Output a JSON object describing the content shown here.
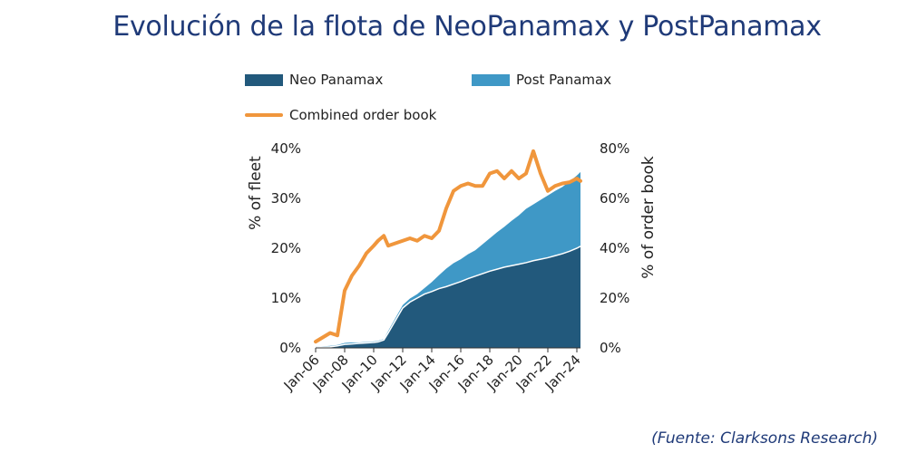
{
  "title": "Evolución de la flota de NeoPanamax y PostPanamax",
  "source": "(Fuente: Clarksons Research)",
  "legend": {
    "neo": "Neo Panamax",
    "post": "Post Panamax",
    "order": "Combined order book"
  },
  "colors": {
    "neo": "#22597c",
    "post": "#3f98c6",
    "order": "#f0963c",
    "title": "#1f3a78"
  },
  "chart_data": {
    "type": "area",
    "title": "",
    "xlabel": "",
    "ylabel": "% of fleet",
    "y2label": "% of order book",
    "ylim": [
      0,
      40
    ],
    "y2lim": [
      0,
      80
    ],
    "yticks": [
      "0%",
      "10%",
      "20%",
      "30%",
      "40%"
    ],
    "y2ticks": [
      "0%",
      "20%",
      "40%",
      "60%",
      "80%"
    ],
    "xticks": [
      "Jan-06",
      "Jan-08",
      "Jan-10",
      "Jan-12",
      "Jan-14",
      "Jan-16",
      "Jan-18",
      "Jan-20",
      "Jan-22",
      "Jan-24"
    ],
    "x": [
      2006,
      2007,
      2007.5,
      2008,
      2008.5,
      2009,
      2009.5,
      2010,
      2010.3,
      2010.7,
      2011,
      2011.5,
      2012,
      2012.5,
      2013,
      2013.5,
      2014,
      2014.5,
      2015,
      2015.5,
      2016,
      2016.5,
      2017,
      2017.5,
      2018,
      2018.5,
      2019,
      2019.5,
      2020,
      2020.5,
      2021,
      2021.5,
      2022,
      2022.5,
      2023,
      2023.5,
      2024,
      2024.25
    ],
    "series": [
      {
        "name": "Neo Panamax",
        "values": [
          0.1,
          0.2,
          0.4,
          0.7,
          0.8,
          0.9,
          1.0,
          1.1,
          1.2,
          1.6,
          3.0,
          5.5,
          8.0,
          9.2,
          10.0,
          10.8,
          11.3,
          11.9,
          12.3,
          12.8,
          13.3,
          13.9,
          14.4,
          14.9,
          15.4,
          15.8,
          16.2,
          16.5,
          16.8,
          17.1,
          17.5,
          17.8,
          18.1,
          18.5,
          18.9,
          19.4,
          20.0,
          20.4
        ]
      },
      {
        "name": "Post Panamax",
        "values": [
          0.2,
          0.4,
          0.6,
          1.0,
          1.1,
          1.1,
          1.2,
          1.3,
          1.4,
          1.8,
          3.4,
          6.0,
          8.6,
          9.9,
          10.8,
          12.0,
          13.2,
          14.6,
          15.9,
          17.0,
          17.8,
          18.8,
          19.6,
          20.8,
          22.0,
          23.2,
          24.3,
          25.5,
          26.6,
          27.9,
          28.8,
          29.7,
          30.6,
          31.5,
          32.3,
          33.4,
          34.6,
          35.3
        ]
      },
      {
        "name": "Combined order book",
        "axis": "right",
        "values": [
          2.5,
          6.0,
          5.0,
          23.0,
          29.0,
          33.0,
          38.0,
          41.0,
          43.0,
          45.0,
          41.0,
          42.0,
          43.0,
          44.0,
          43.0,
          45.0,
          44.0,
          47.0,
          56.0,
          63.0,
          65.0,
          66.0,
          65.0,
          65.0,
          70.0,
          71.0,
          68.0,
          71.0,
          68.0,
          70.0,
          79.0,
          70.0,
          63.0,
          65.0,
          66.0,
          66.5,
          68.0,
          67.0
        ]
      }
    ],
    "grid": false,
    "legend_position": "top"
  }
}
